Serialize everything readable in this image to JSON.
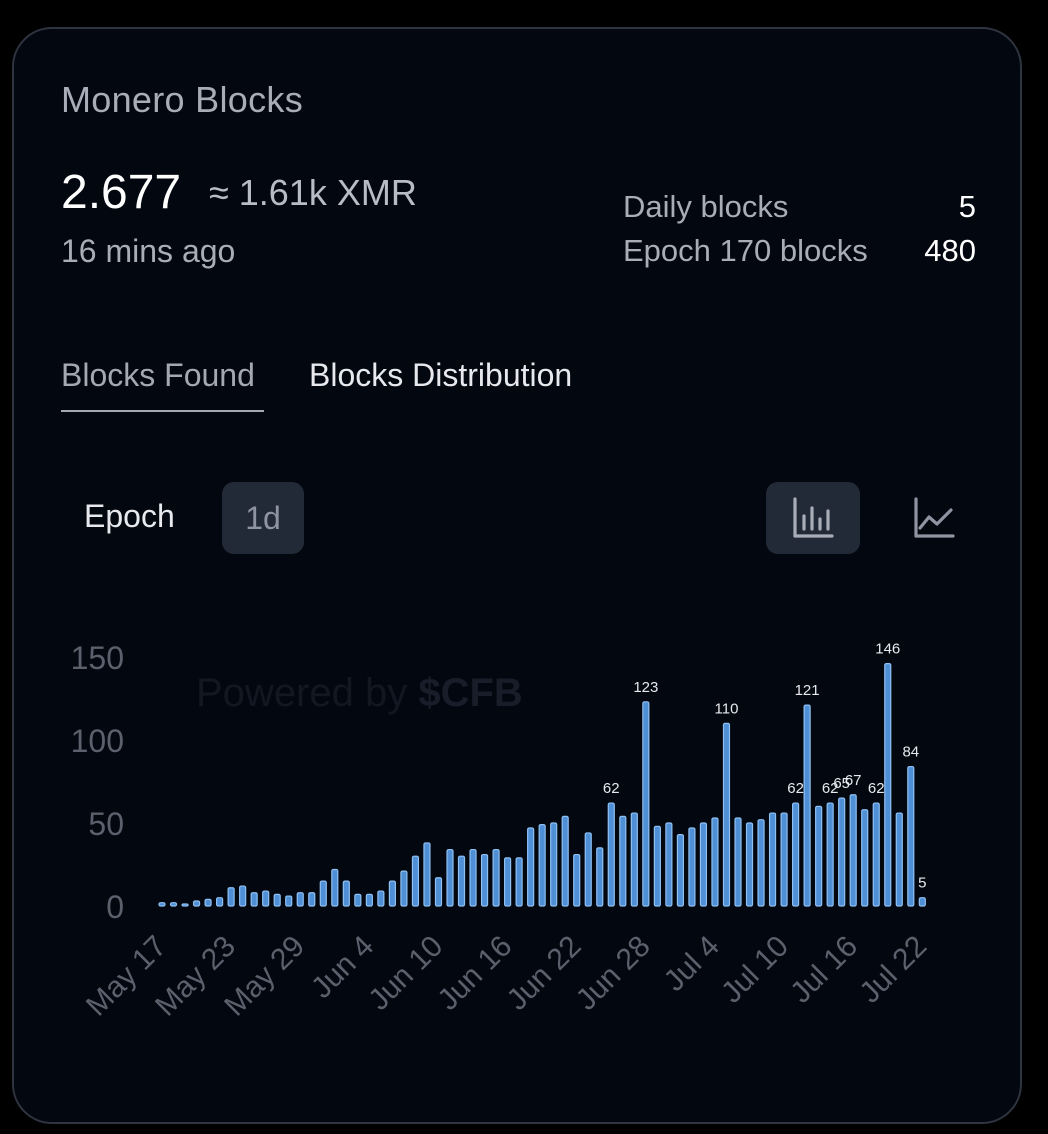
{
  "card": {
    "title": "Monero Blocks",
    "value": "2.677",
    "approx": "≈ 1.61k XMR",
    "time_ago": "16 mins ago",
    "stats": [
      {
        "label": "Daily blocks",
        "value": "5"
      },
      {
        "label": "Epoch 170 blocks",
        "value": "480"
      }
    ]
  },
  "tabs": [
    {
      "label": "Blocks Found",
      "active": true
    },
    {
      "label": "Blocks Distribution",
      "active": false
    }
  ],
  "controls": {
    "epoch_label": "Epoch",
    "range_label": "1d",
    "bar_icon": "bar-chart-icon",
    "line_icon": "line-chart-icon"
  },
  "watermark": {
    "prefix": "Powered by",
    "brand": "$CFB"
  },
  "colors": {
    "bar_fill": "#4f8fd6",
    "bar_stroke": "#8fc0f2",
    "axis_text": "#5a606c",
    "label_text": "#e7e9ee"
  },
  "chart_data": {
    "type": "bar",
    "ylim": [
      0,
      150
    ],
    "yticks": [
      0,
      50,
      100,
      150
    ],
    "xtick_labels": [
      "May 17",
      "May 23",
      "May 29",
      "Jun 4",
      "Jun 10",
      "Jun 16",
      "Jun 22",
      "Jun 28",
      "Jul 4",
      "Jul 10",
      "Jul 16",
      "Jul 22"
    ],
    "xtick_indices": [
      0,
      6,
      12,
      18,
      24,
      30,
      36,
      42,
      48,
      54,
      60,
      66
    ],
    "values": [
      2,
      2,
      1,
      3,
      4,
      5,
      11,
      12,
      8,
      9,
      7,
      6,
      8,
      8,
      15,
      22,
      15,
      7,
      7,
      9,
      15,
      21,
      30,
      38,
      17,
      34,
      30,
      34,
      31,
      34,
      29,
      29,
      47,
      49,
      50,
      54,
      31,
      44,
      35,
      62,
      54,
      56,
      123,
      48,
      50,
      43,
      47,
      50,
      53,
      110,
      53,
      50,
      52,
      56,
      56,
      62,
      121,
      60,
      62,
      65,
      67,
      58,
      62,
      146,
      56,
      84,
      5
    ],
    "data_labels": [
      {
        "index": 39,
        "text": "62"
      },
      {
        "index": 42,
        "text": "123"
      },
      {
        "index": 49,
        "text": "110"
      },
      {
        "index": 55,
        "text": "62"
      },
      {
        "index": 56,
        "text": "121"
      },
      {
        "index": 58,
        "text": "62"
      },
      {
        "index": 59,
        "text": "65"
      },
      {
        "index": 60,
        "text": "67"
      },
      {
        "index": 62,
        "text": "62"
      },
      {
        "index": 63,
        "text": "146"
      },
      {
        "index": 65,
        "text": "84"
      },
      {
        "index": 66,
        "text": "5"
      }
    ]
  }
}
